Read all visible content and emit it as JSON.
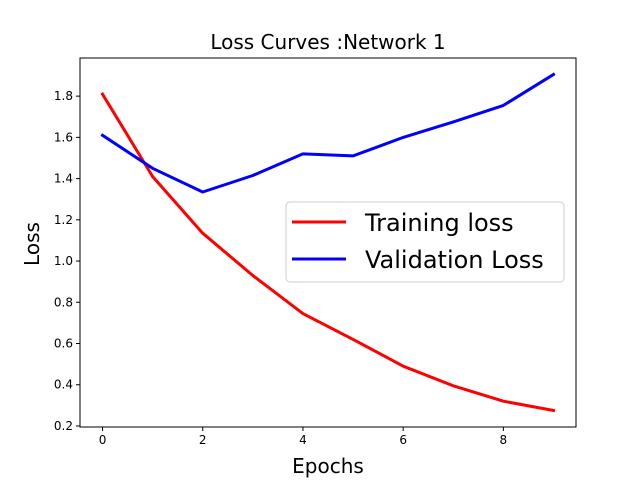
{
  "chart_data": {
    "type": "line",
    "title": "Loss Curves :Network 1",
    "xlabel": "Epochs",
    "ylabel": "Loss",
    "x": [
      0,
      1,
      2,
      3,
      4,
      5,
      6,
      7,
      8,
      9
    ],
    "xlim": [
      -0.45,
      9.45
    ],
    "ylim": [
      0.195,
      1.985
    ],
    "xticks": [
      0,
      2,
      4,
      6,
      8
    ],
    "yticks": [
      0.2,
      0.4,
      0.6,
      0.8,
      1.0,
      1.2,
      1.4,
      1.6,
      1.8
    ],
    "grid": false,
    "legend_position": "center-right",
    "series": [
      {
        "name": "Training loss",
        "color": "#ff0000",
        "values": [
          1.81,
          1.41,
          1.135,
          0.93,
          0.745,
          0.62,
          0.49,
          0.395,
          0.32,
          0.275
        ]
      },
      {
        "name": "Validation Loss",
        "color": "#0000ff",
        "values": [
          1.61,
          1.45,
          1.335,
          1.415,
          1.52,
          1.51,
          1.6,
          1.675,
          1.755,
          1.905
        ]
      }
    ]
  }
}
